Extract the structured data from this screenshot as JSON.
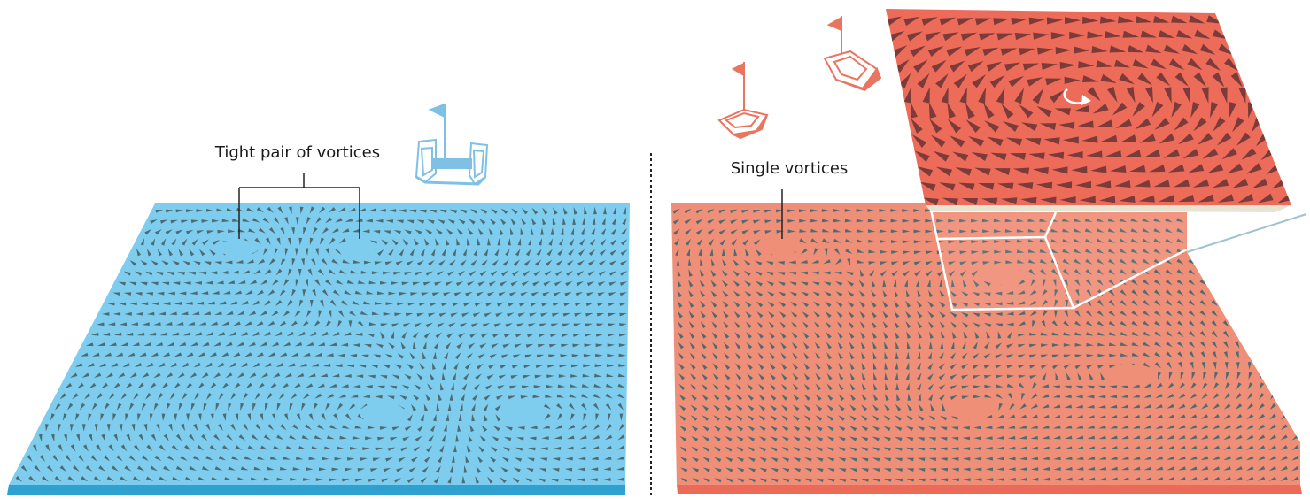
{
  "annotations": {
    "left_label": "Tight pair of vortices",
    "right_label": "Single vortices"
  },
  "colors": {
    "blue_surface": "#7ecdef",
    "blue_edge": "#2ea1d0",
    "red_surface": "#ef8f78",
    "red_edge": "#ec6a58",
    "zoom_surface": "#ec6b59",
    "arrow": "#4e6b72",
    "zoom_arrow": "#7a3b3a",
    "divider": "#222222",
    "boat_blue": "#7fc1e4",
    "boat_red": "#e97560"
  },
  "icons": {
    "left_boat": "catamaran-icon",
    "right_boats": "sailboat-icon",
    "rotation": "curved-arrow-icon"
  }
}
